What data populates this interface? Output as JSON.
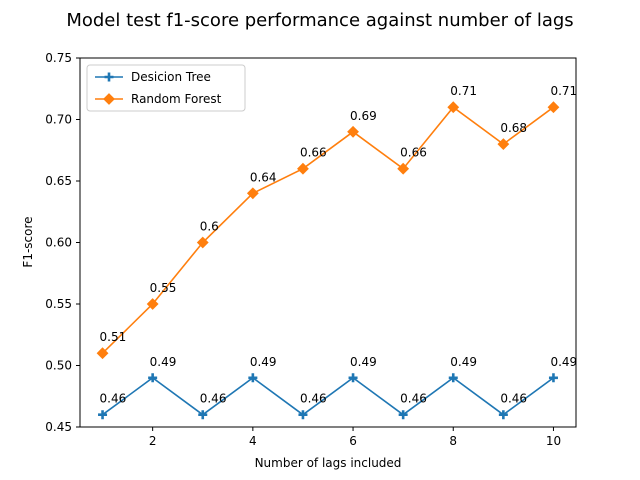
{
  "chart_data": {
    "type": "line",
    "title": "Model test f1-score performance against number of lags",
    "xlabel": "Number of lags included",
    "ylabel": "F1-score",
    "x": [
      1,
      2,
      3,
      4,
      5,
      6,
      7,
      8,
      9,
      10
    ],
    "xlim": [
      0.55,
      10.45
    ],
    "ylim": [
      0.45,
      0.75
    ],
    "xticks": [
      2,
      4,
      6,
      8,
      10
    ],
    "yticks": [
      0.45,
      0.5,
      0.55,
      0.6,
      0.65,
      0.7,
      0.75
    ],
    "xtick_labels": [
      "2",
      "4",
      "6",
      "8",
      "10"
    ],
    "ytick_labels": [
      "0.45",
      "0.50",
      "0.55",
      "0.60",
      "0.65",
      "0.70",
      "0.75"
    ],
    "grid": false,
    "legend_position": "top-left",
    "series": [
      {
        "name": "Desicion Tree",
        "color": "#1f77b4",
        "marker": "plus",
        "values": [
          0.46,
          0.49,
          0.46,
          0.49,
          0.46,
          0.49,
          0.46,
          0.49,
          0.46,
          0.49
        ],
        "labels": [
          "0.46",
          "0.49",
          "0.46",
          "0.49",
          "0.46",
          "0.49",
          "0.46",
          "0.49",
          "0.46",
          "0.49"
        ]
      },
      {
        "name": "Random Forest",
        "color": "#ff7f0e",
        "marker": "diamond",
        "values": [
          0.51,
          0.55,
          0.6,
          0.64,
          0.66,
          0.69,
          0.66,
          0.71,
          0.68,
          0.71
        ],
        "labels": [
          "0.51",
          "0.55",
          "0.6",
          "0.64",
          "0.66",
          "0.69",
          "0.66",
          "0.71",
          "0.68",
          "0.71"
        ]
      }
    ]
  }
}
